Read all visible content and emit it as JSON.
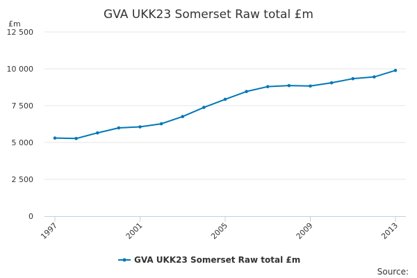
{
  "chart_data": {
    "type": "line",
    "title": "GVA UKK23 Somerset Raw total £m",
    "ylabel": "£m",
    "xlabel": "",
    "x": [
      1997,
      1998,
      1999,
      2000,
      2001,
      2002,
      2003,
      2004,
      2005,
      2006,
      2007,
      2008,
      2009,
      2010,
      2011,
      2012,
      2013
    ],
    "x_tick_labels": [
      "1997",
      "2001",
      "2005",
      "2009",
      "2013"
    ],
    "y_tick_labels": [
      "0",
      "2 500",
      "5 000",
      "7 500",
      "10 000",
      "12 500"
    ],
    "ylim": [
      0,
      12500
    ],
    "xlim": [
      1997,
      2013
    ],
    "grid": true,
    "legend_position": "bottom",
    "series": [
      {
        "name": "GVA UKK23 Somerset Raw total £m",
        "color": "#0077b6",
        "values": [
          5300,
          5270,
          5650,
          5990,
          6060,
          6270,
          6760,
          7380,
          7930,
          8460,
          8790,
          8860,
          8830,
          9050,
          9330,
          9450,
          9890
        ]
      }
    ]
  },
  "footer": {
    "source_label": "Source:"
  }
}
